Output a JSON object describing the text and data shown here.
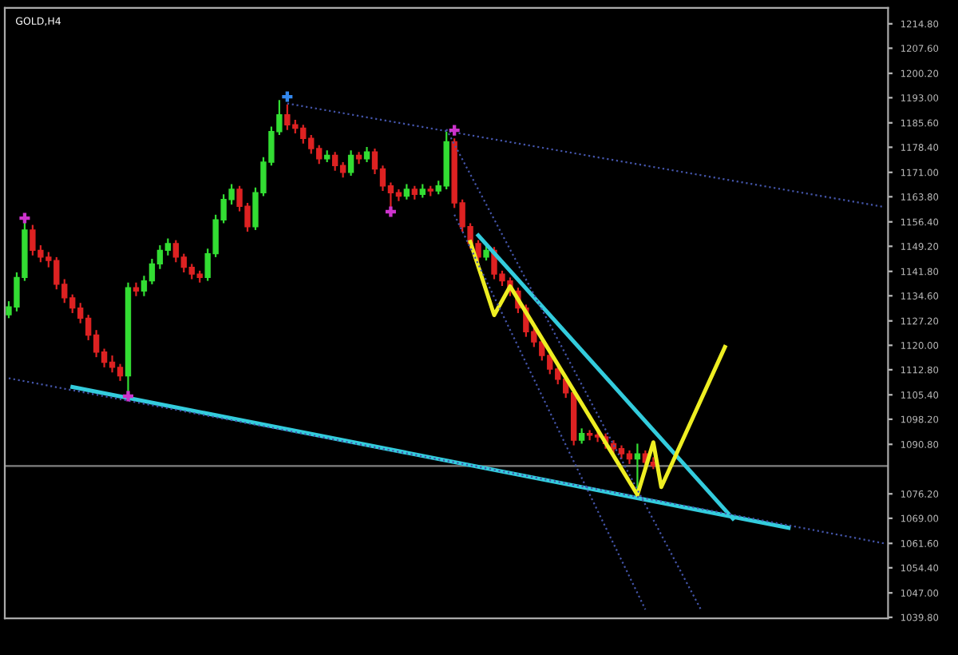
{
  "chart_data": {
    "type": "candlestick",
    "title": "GOLD,H4",
    "categories": [
      null,
      null,
      null,
      null,
      null,
      null,
      null,
      null,
      null,
      null,
      null,
      null,
      null,
      null,
      null,
      null,
      null,
      null,
      null,
      null,
      null,
      null,
      null,
      null,
      null,
      null,
      null,
      null,
      null,
      null,
      null,
      null,
      null,
      null,
      null,
      null,
      null,
      null,
      null,
      null,
      null,
      null,
      null,
      null,
      null,
      null,
      null,
      null,
      null,
      null,
      null,
      null,
      null,
      null,
      null,
      null,
      null,
      null,
      null,
      null,
      null,
      null,
      null,
      null,
      null,
      null,
      null,
      null,
      null,
      null,
      null,
      null,
      null,
      null,
      null,
      null,
      null,
      null,
      null,
      null,
      null,
      null,
      null,
      null,
      null,
      null,
      null,
      null,
      null,
      null,
      null,
      null,
      null,
      null,
      null,
      null,
      null,
      null,
      null,
      null,
      null,
      null,
      null,
      null,
      null,
      null,
      null,
      null,
      null,
      null,
      null
    ],
    "ohlc": [
      [
        1129,
        1133,
        1128,
        1131.3
      ],
      [
        1131.3,
        1141.5,
        1130,
        1140
      ],
      [
        1140,
        1157,
        1139,
        1154
      ],
      [
        1154,
        1155.5,
        1146.5,
        1148
      ],
      [
        1148,
        1149.5,
        1144.5,
        1146
      ],
      [
        1146,
        1147.5,
        1143,
        1145
      ],
      [
        1145,
        1146,
        1136.5,
        1138
      ],
      [
        1138,
        1139.5,
        1132.5,
        1134
      ],
      [
        1134,
        1135,
        1129.5,
        1131
      ],
      [
        1131,
        1132.5,
        1126.5,
        1128
      ],
      [
        1128,
        1129,
        1121.5,
        1123
      ],
      [
        1123,
        1124.5,
        1116.5,
        1118
      ],
      [
        1118,
        1119,
        1113.5,
        1115
      ],
      [
        1115,
        1117,
        1112,
        1113.5
      ],
      [
        1113.5,
        1114.5,
        1109.5,
        1111
      ],
      [
        1111,
        1138.5,
        1105.5,
        1137
      ],
      [
        1137,
        1138.5,
        1134.5,
        1136
      ],
      [
        1136,
        1140.5,
        1134.5,
        1139
      ],
      [
        1139,
        1145.5,
        1138,
        1144
      ],
      [
        1144,
        1149.5,
        1142.5,
        1148
      ],
      [
        1148,
        1151.5,
        1146.5,
        1150
      ],
      [
        1150,
        1151,
        1144.5,
        1146
      ],
      [
        1146,
        1147,
        1141.5,
        1143
      ],
      [
        1143,
        1144,
        1139.5,
        1141
      ],
      [
        1141,
        1142,
        1138.5,
        1140
      ],
      [
        1140,
        1148.5,
        1139,
        1147
      ],
      [
        1147,
        1158.5,
        1146,
        1157
      ],
      [
        1157,
        1164.5,
        1156,
        1163
      ],
      [
        1163,
        1167.5,
        1161.5,
        1166
      ],
      [
        1166,
        1167,
        1159.5,
        1161
      ],
      [
        1161,
        1162,
        1153.5,
        1155
      ],
      [
        1155,
        1166.5,
        1154,
        1165
      ],
      [
        1165,
        1175.5,
        1164,
        1174
      ],
      [
        1174,
        1184.5,
        1173,
        1183
      ],
      [
        1183,
        1192.3,
        1182,
        1188
      ],
      [
        1188,
        1191,
        1183.5,
        1185
      ],
      [
        1185,
        1186.5,
        1182.5,
        1184
      ],
      [
        1184,
        1185,
        1179.5,
        1181
      ],
      [
        1181,
        1182,
        1176.5,
        1178
      ],
      [
        1178,
        1179,
        1173.5,
        1175
      ],
      [
        1175,
        1177.5,
        1174,
        1176
      ],
      [
        1176,
        1177,
        1171.5,
        1173
      ],
      [
        1173,
        1174,
        1169.5,
        1171
      ],
      [
        1171,
        1177.5,
        1170,
        1176
      ],
      [
        1176,
        1177,
        1173.5,
        1175
      ],
      [
        1175,
        1178.5,
        1174,
        1177
      ],
      [
        1177,
        1178,
        1170.5,
        1172
      ],
      [
        1172,
        1173,
        1165.5,
        1167
      ],
      [
        1167,
        1168,
        1159.5,
        1165
      ],
      [
        1165,
        1166,
        1162.5,
        1164
      ],
      [
        1164,
        1167.5,
        1163,
        1166
      ],
      [
        1166,
        1167,
        1163,
        1164.5
      ],
      [
        1164.5,
        1167.5,
        1163.5,
        1166
      ],
      [
        1166,
        1167,
        1164,
        1165.5
      ],
      [
        1165.5,
        1168.5,
        1164.5,
        1167
      ],
      [
        1167,
        1183,
        1166,
        1180
      ],
      [
        1180,
        1181,
        1160.5,
        1162
      ],
      [
        1162,
        1163,
        1153.5,
        1155
      ],
      [
        1155,
        1156,
        1148.5,
        1150
      ],
      [
        1150,
        1151,
        1144.5,
        1146
      ],
      [
        1146,
        1149.5,
        1145,
        1148
      ],
      [
        1148,
        1149,
        1139.5,
        1141
      ],
      [
        1141,
        1142,
        1137.5,
        1139
      ],
      [
        1139,
        1140,
        1134.5,
        1136
      ],
      [
        1136,
        1137,
        1129.5,
        1131
      ],
      [
        1131,
        1132,
        1122.5,
        1124
      ],
      [
        1124,
        1125,
        1119.5,
        1121
      ],
      [
        1121,
        1122,
        1115.5,
        1117
      ],
      [
        1117,
        1118,
        1111.5,
        1113
      ],
      [
        1113,
        1114,
        1108.5,
        1110
      ],
      [
        1110,
        1111,
        1104.5,
        1106
      ],
      [
        1106,
        1107,
        1090.5,
        1092
      ],
      [
        1092,
        1095.5,
        1091,
        1094
      ],
      [
        1094,
        1095,
        1092,
        1093.5
      ],
      [
        1093.5,
        1094.5,
        1091.5,
        1093
      ],
      [
        1093,
        1094,
        1089.5,
        1091
      ],
      [
        1091,
        1092,
        1088,
        1089.5
      ],
      [
        1089.5,
        1090.5,
        1086.5,
        1088
      ],
      [
        1088,
        1089,
        1085,
        1086.5
      ],
      [
        1086.5,
        1091,
        1076.5,
        1088
      ],
      [
        1088,
        1089,
        1084,
        1085.5
      ],
      [
        1085.5,
        1087,
        1083.5,
        1084.5
      ],
      null,
      null,
      null,
      null,
      null,
      null,
      null,
      null,
      null,
      null,
      null,
      null,
      null,
      null,
      null,
      null,
      null,
      null,
      null,
      null,
      null,
      null,
      null,
      null,
      null,
      null,
      null,
      null,
      null
    ],
    "series": [
      {
        "type": "line",
        "color": "#33ccdd",
        "line_style": "solid",
        "values": [
          null,
          null,
          null,
          null,
          null,
          null,
          null,
          null,
          1107.7,
          null,
          null,
          null,
          null,
          null,
          null,
          null,
          null,
          null,
          null,
          null,
          null,
          null,
          null,
          null,
          null,
          null,
          null,
          null,
          null,
          null,
          null,
          null,
          null,
          null,
          null,
          null,
          null,
          null,
          null,
          null,
          null,
          null,
          null,
          null,
          null,
          null,
          null,
          null,
          null,
          null,
          null,
          null,
          null,
          null,
          null,
          null,
          null,
          null,
          null,
          null,
          null,
          null,
          null,
          null,
          null,
          null,
          null,
          null,
          null,
          null,
          null,
          null,
          null,
          null,
          null,
          null,
          null,
          null,
          null,
          null,
          null,
          null,
          null,
          null,
          null,
          null,
          null,
          null,
          null,
          null,
          null,
          null,
          null,
          null,
          null,
          null,
          null,
          null,
          1066.2,
          null,
          null,
          null,
          null,
          null,
          null,
          null,
          null,
          null,
          null,
          null,
          null
        ]
      },
      {
        "type": "line",
        "color": "#33ccdd",
        "line_style": "solid",
        "values": [
          null,
          null,
          null,
          null,
          null,
          null,
          null,
          null,
          null,
          null,
          null,
          null,
          null,
          null,
          null,
          null,
          null,
          null,
          null,
          null,
          null,
          null,
          null,
          null,
          null,
          null,
          null,
          null,
          null,
          null,
          null,
          null,
          null,
          null,
          null,
          null,
          null,
          null,
          null,
          null,
          null,
          null,
          null,
          null,
          null,
          null,
          null,
          null,
          null,
          null,
          null,
          null,
          null,
          null,
          null,
          null,
          null,
          null,
          null,
          1152.4,
          null,
          null,
          null,
          null,
          null,
          null,
          null,
          null,
          null,
          null,
          null,
          null,
          null,
          null,
          null,
          null,
          null,
          null,
          null,
          null,
          null,
          null,
          null,
          null,
          null,
          null,
          null,
          null,
          null,
          null,
          null,
          1068.9,
          null,
          null,
          null,
          null,
          null,
          null,
          null,
          null,
          null,
          null,
          null,
          null,
          null,
          null,
          null,
          null,
          null,
          null,
          null
        ]
      },
      {
        "type": "line",
        "color": "#eeee22",
        "line_style": "solid",
        "values": [
          null,
          null,
          null,
          null,
          null,
          null,
          null,
          null,
          null,
          null,
          null,
          null,
          null,
          null,
          null,
          null,
          null,
          null,
          null,
          null,
          null,
          null,
          null,
          null,
          null,
          null,
          null,
          null,
          null,
          null,
          null,
          null,
          null,
          null,
          null,
          null,
          null,
          null,
          null,
          null,
          null,
          null,
          null,
          null,
          null,
          null,
          null,
          null,
          null,
          null,
          null,
          null,
          null,
          null,
          null,
          null,
          null,
          null,
          1150.5,
          null,
          null,
          1128.9,
          null,
          1137.4,
          null,
          null,
          null,
          null,
          null,
          null,
          null,
          null,
          null,
          null,
          null,
          null,
          null,
          null,
          null,
          1075.9,
          null,
          1091.4,
          1078.2,
          null,
          null,
          null,
          null,
          null,
          null,
          null,
          1119.5,
          null,
          null,
          null,
          null,
          null,
          null,
          null,
          null,
          null,
          null,
          null,
          null,
          null,
          null,
          null,
          null,
          null,
          null,
          null,
          null
        ]
      },
      {
        "type": "line",
        "color": "#4455aa",
        "line_style": "dotted",
        "values": [
          null,
          null,
          null,
          null,
          null,
          null,
          null,
          null,
          null,
          null,
          null,
          null,
          null,
          null,
          null,
          null,
          null,
          null,
          null,
          null,
          null,
          null,
          null,
          null,
          null,
          null,
          null,
          null,
          null,
          null,
          null,
          null,
          null,
          null,
          null,
          1191.3,
          null,
          null,
          null,
          null,
          null,
          null,
          null,
          null,
          null,
          null,
          null,
          null,
          null,
          null,
          null,
          null,
          null,
          null,
          null,
          null,
          null,
          null,
          null,
          null,
          null,
          null,
          null,
          null,
          null,
          null,
          null,
          null,
          null,
          null,
          null,
          null,
          null,
          null,
          null,
          null,
          null,
          null,
          null,
          null,
          null,
          null,
          null,
          null,
          null,
          null,
          null,
          null,
          null,
          null,
          null,
          null,
          null,
          null,
          null,
          null,
          null,
          null,
          null,
          null,
          null,
          null,
          null,
          null,
          null,
          null,
          null,
          null,
          null,
          null,
          1160.8
        ]
      },
      {
        "type": "line",
        "color": "#4455aa",
        "line_style": "dotted",
        "values": [
          null,
          null,
          null,
          null,
          null,
          null,
          null,
          null,
          null,
          null,
          null,
          null,
          null,
          null,
          null,
          null,
          null,
          null,
          null,
          null,
          null,
          null,
          null,
          null,
          null,
          null,
          null,
          null,
          null,
          null,
          null,
          null,
          null,
          null,
          null,
          null,
          null,
          null,
          null,
          null,
          null,
          null,
          null,
          null,
          null,
          null,
          null,
          null,
          null,
          null,
          null,
          null,
          null,
          null,
          null,
          1183.7,
          null,
          null,
          null,
          null,
          null,
          null,
          null,
          null,
          null,
          null,
          null,
          null,
          null,
          null,
          null,
          null,
          null,
          null,
          null,
          null,
          null,
          null,
          null,
          null,
          null,
          null,
          null,
          null,
          null,
          null,
          null,
          1042.0,
          null,
          null,
          null,
          null,
          null,
          null,
          null,
          null,
          null,
          null,
          null,
          null,
          null,
          null,
          null,
          null,
          null,
          null,
          null,
          null,
          null,
          null,
          null
        ]
      },
      {
        "type": "line",
        "color": "#4455aa",
        "line_style": "dotted",
        "values": [
          null,
          null,
          null,
          null,
          null,
          null,
          null,
          null,
          null,
          null,
          null,
          null,
          null,
          null,
          null,
          null,
          null,
          null,
          null,
          null,
          null,
          null,
          null,
          null,
          null,
          null,
          null,
          null,
          null,
          null,
          null,
          null,
          null,
          null,
          null,
          null,
          null,
          null,
          null,
          null,
          null,
          null,
          null,
          null,
          null,
          null,
          null,
          null,
          null,
          null,
          null,
          null,
          null,
          null,
          null,
          null,
          1158.5,
          null,
          null,
          null,
          null,
          null,
          null,
          null,
          null,
          null,
          null,
          null,
          null,
          null,
          null,
          null,
          null,
          null,
          null,
          null,
          null,
          null,
          null,
          null,
          1042.1,
          null,
          null,
          null,
          null,
          null,
          null,
          null,
          null,
          null,
          null,
          null,
          null,
          null,
          null,
          null,
          null,
          null,
          null,
          null,
          null,
          null,
          null,
          null,
          null,
          null,
          null,
          null,
          null,
          null,
          null
        ]
      },
      {
        "type": "line",
        "color": "#4455aa",
        "line_style": "dotted",
        "values": [
          1110.3,
          null,
          null,
          null,
          null,
          null,
          null,
          null,
          null,
          null,
          null,
          null,
          null,
          null,
          null,
          null,
          null,
          null,
          null,
          null,
          null,
          null,
          null,
          null,
          null,
          null,
          null,
          null,
          null,
          null,
          null,
          null,
          null,
          null,
          null,
          null,
          null,
          null,
          null,
          null,
          null,
          null,
          null,
          null,
          null,
          null,
          null,
          null,
          null,
          null,
          null,
          null,
          null,
          null,
          null,
          null,
          null,
          null,
          null,
          null,
          null,
          null,
          null,
          null,
          null,
          null,
          null,
          null,
          null,
          null,
          null,
          null,
          null,
          null,
          null,
          null,
          null,
          null,
          null,
          null,
          null,
          null,
          null,
          null,
          null,
          null,
          null,
          null,
          null,
          null,
          null,
          null,
          null,
          null,
          null,
          null,
          null,
          null,
          null,
          null,
          null,
          null,
          null,
          null,
          null,
          null,
          null,
          null,
          null,
          null,
          1061.6
        ]
      },
      {
        "type": "scatter",
        "color": "#cc33cc",
        "marker": "cross",
        "values": [
          null,
          null,
          1157.5,
          null,
          null,
          null,
          null,
          null,
          null,
          null,
          null,
          null,
          null,
          null,
          null,
          1105.0,
          null,
          null,
          null,
          null,
          null,
          null,
          null,
          null,
          null,
          null,
          null,
          null,
          null,
          null,
          null,
          null,
          null,
          null,
          null,
          null,
          null,
          null,
          null,
          null,
          null,
          null,
          null,
          null,
          null,
          null,
          null,
          null,
          1159.4,
          null,
          null,
          null,
          null,
          null,
          null,
          null,
          1183.4,
          null,
          null,
          null,
          null,
          null,
          null,
          null,
          null,
          null,
          null,
          null,
          null,
          null,
          null,
          null,
          null,
          null,
          null,
          null,
          null,
          null,
          null,
          null,
          null,
          null,
          null,
          null,
          null,
          null,
          null,
          null,
          null,
          null,
          null,
          null,
          null,
          null,
          null,
          null,
          null,
          null,
          null,
          null,
          null,
          null,
          null,
          null,
          null,
          null,
          null,
          null,
          null,
          null,
          null
        ]
      },
      {
        "type": "scatter",
        "color": "#3388ee",
        "marker": "cross",
        "values": [
          null,
          null,
          null,
          null,
          null,
          null,
          null,
          null,
          null,
          null,
          null,
          null,
          null,
          null,
          null,
          null,
          null,
          null,
          null,
          null,
          null,
          null,
          null,
          null,
          null,
          null,
          null,
          null,
          null,
          null,
          null,
          null,
          null,
          null,
          null,
          1193.3,
          null,
          null,
          null,
          null,
          null,
          null,
          null,
          null,
          null,
          null,
          null,
          null,
          null,
          null,
          null,
          null,
          null,
          null,
          null,
          null,
          null,
          null,
          null,
          null,
          null,
          null,
          null,
          null,
          null,
          null,
          null,
          null,
          null,
          null,
          null,
          null,
          null,
          null,
          null,
          null,
          null,
          null,
          null,
          null,
          null,
          null,
          null,
          null,
          null,
          null,
          null,
          null,
          null,
          null,
          null,
          null,
          null,
          null,
          null,
          null,
          null,
          null,
          null,
          null,
          null,
          null,
          null,
          null,
          null,
          null,
          null,
          null,
          null,
          null,
          null
        ]
      }
    ],
    "ref_lines": [
      {
        "axis": "y",
        "value": 1084.4,
        "color": "#808080"
      }
    ],
    "ylim": [
      1039.5,
      1219.5
    ],
    "yticks": [
      {
        "value": 1214.8,
        "label": "1214.80"
      },
      {
        "value": 1207.6,
        "label": "1207.60"
      },
      {
        "value": 1200.2,
        "label": "1200.20"
      },
      {
        "value": 1193.0,
        "label": "1193.00"
      },
      {
        "value": 1185.6,
        "label": "1185.60"
      },
      {
        "value": 1178.4,
        "label": "1178.40"
      },
      {
        "value": 1171.0,
        "label": "1171.00"
      },
      {
        "value": 1163.8,
        "label": "1163.80"
      },
      {
        "value": 1156.4,
        "label": "1156.40"
      },
      {
        "value": 1149.2,
        "label": "1149.20"
      },
      {
        "value": 1141.8,
        "label": "1141.80"
      },
      {
        "value": 1134.6,
        "label": "1134.60"
      },
      {
        "value": 1127.2,
        "label": "1127.20"
      },
      {
        "value": 1120.0,
        "label": "1120.00"
      },
      {
        "value": 1112.8,
        "label": "1112.80"
      },
      {
        "value": 1105.4,
        "label": "1105.40"
      },
      {
        "value": 1098.2,
        "label": "1098.20"
      },
      {
        "value": 1090.8,
        "label": "1090.80"
      },
      {
        "value": 1076.2,
        "label": "1076.20"
      },
      {
        "value": 1069.0,
        "label": "1069.00"
      },
      {
        "value": 1061.6,
        "label": "1061.60"
      },
      {
        "value": 1054.4,
        "label": "1054.40"
      },
      {
        "value": 1047.0,
        "label": "1047.00"
      },
      {
        "value": 1039.8,
        "label": "1039.80"
      }
    ],
    "tick_labels": "y",
    "grid": false,
    "legend": false
  }
}
